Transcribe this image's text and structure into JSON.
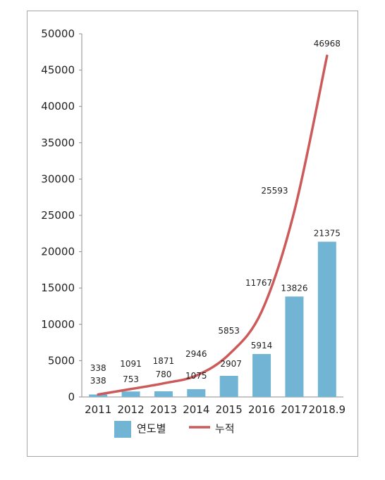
{
  "chart_data": {
    "type": "bar",
    "categories": [
      "2011",
      "2012",
      "2013",
      "2014",
      "2015",
      "2016",
      "2017",
      "2018.9"
    ],
    "series": [
      {
        "name": "연도별",
        "type": "bar",
        "color": "#72b4d4",
        "values": [
          338,
          753,
          780,
          1075,
          2907,
          5914,
          13826,
          21375
        ]
      },
      {
        "name": "누적",
        "type": "line",
        "color": "#cc5a5a",
        "values": [
          338,
          1091,
          1871,
          2946,
          5853,
          11767,
          25593,
          46968
        ]
      }
    ],
    "ylim": [
      0,
      50000
    ],
    "yticks": [
      0,
      5000,
      10000,
      15000,
      20000,
      25000,
      30000,
      35000,
      40000,
      45000,
      50000
    ],
    "grid": false,
    "legend_position": "bottom"
  }
}
